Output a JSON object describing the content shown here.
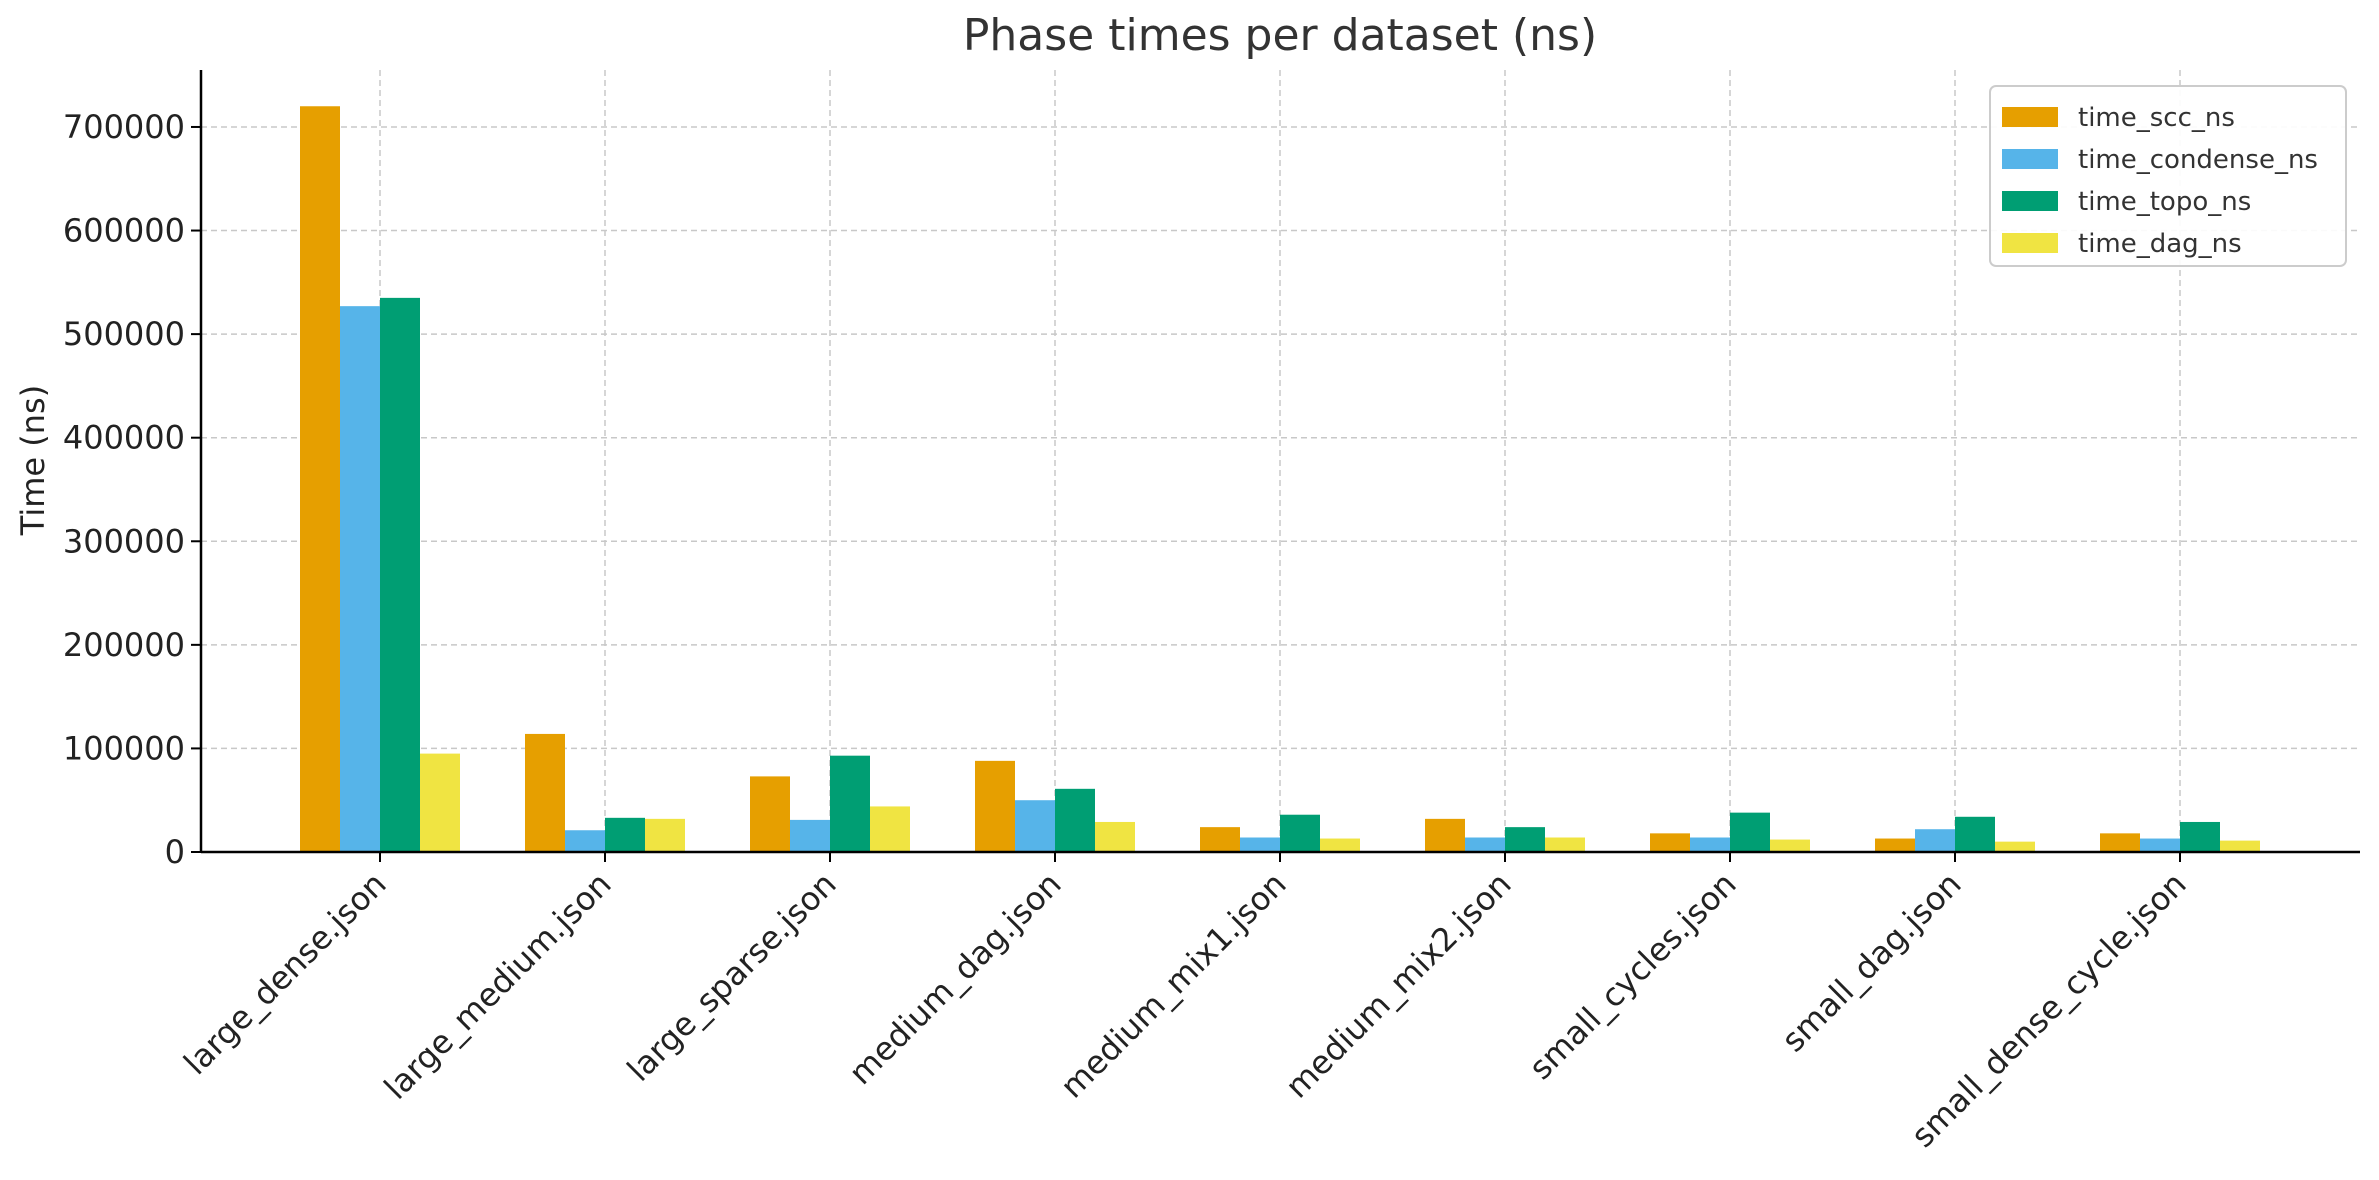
{
  "chart_data": {
    "type": "bar",
    "title": "Phase times per dataset (ns)",
    "xlabel": "",
    "ylabel": "Time (ns)",
    "ylim": [
      0,
      755000
    ],
    "yticks": [
      0,
      100000,
      200000,
      300000,
      400000,
      500000,
      600000,
      700000
    ],
    "grid": true,
    "legend_position": "top-right",
    "categories": [
      "large_dense.json",
      "large_medium.json",
      "large_sparse.json",
      "medium_dag.json",
      "medium_mix1.json",
      "medium_mix2.json",
      "small_cycles.json",
      "small_dag.json",
      "small_dense_cycle.json"
    ],
    "series": [
      {
        "name": "time_scc_ns",
        "color": "#E69F00",
        "values": [
          720000,
          114000,
          73000,
          88000,
          24000,
          32000,
          18000,
          13000,
          18000
        ]
      },
      {
        "name": "time_condense_ns",
        "color": "#56B4E9",
        "values": [
          527000,
          21000,
          31000,
          50000,
          14000,
          14000,
          14000,
          22000,
          13000
        ]
      },
      {
        "name": "time_topo_ns",
        "color": "#009E73",
        "values": [
          535000,
          33000,
          93000,
          61000,
          36000,
          24000,
          38000,
          34000,
          29000
        ]
      },
      {
        "name": "time_dag_ns",
        "color": "#F0E442",
        "values": [
          95000,
          32000,
          44000,
          29000,
          13000,
          14000,
          12000,
          10000,
          11000
        ]
      }
    ]
  }
}
